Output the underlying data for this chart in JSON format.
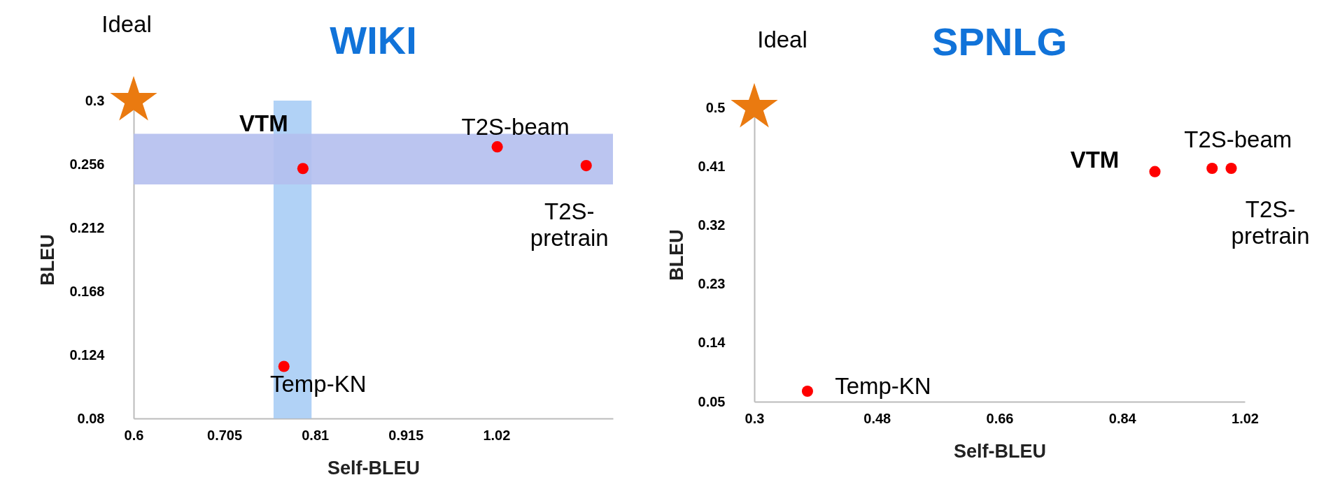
{
  "chart_data": [
    {
      "type": "scatter",
      "title": "WIKI",
      "xlabel": "Self-BLEU",
      "ylabel": "BLEU",
      "xlim": [
        0.6,
        1.155
      ],
      "ylim": [
        0.08,
        0.3
      ],
      "xticks": [
        0.6,
        0.705,
        0.81,
        0.915,
        1.02
      ],
      "yticks": [
        0.08,
        0.124,
        0.168,
        0.212,
        0.256,
        0.3
      ],
      "bands": [
        {
          "axis": "x",
          "from": 0.762,
          "to": 0.806,
          "color": "#a9cdf5"
        },
        {
          "axis": "y",
          "from": 0.242,
          "to": 0.277,
          "color": "#b4bfee"
        }
      ],
      "series": [
        {
          "color": "#ff0000",
          "marker": "circle",
          "x": [
            0.796,
            1.021,
            1.124,
            0.774
          ],
          "values": [
            0.253,
            0.268,
            0.255,
            0.116
          ],
          "value_labels": [
            "VTM",
            "T2S-beam",
            "T2S-\npretrain",
            "Temp-KN"
          ]
        },
        {
          "color": "#ea7a10",
          "marker": "star",
          "x": [
            0.6
          ],
          "values": [
            0.3
          ],
          "value_labels": [
            "Ideal"
          ]
        }
      ]
    },
    {
      "type": "scatter",
      "title": "SPNLG",
      "xlabel": "Self-BLEU",
      "ylabel": "BLEU",
      "xlim": [
        0.3,
        1.02
      ],
      "ylim": [
        0.05,
        0.5
      ],
      "xticks": [
        0.3,
        0.48,
        0.66,
        0.84,
        1.02
      ],
      "yticks": [
        0.05,
        0.14,
        0.23,
        0.32,
        0.41,
        0.5
      ],
      "series": [
        {
          "color": "#ff0000",
          "marker": "circle",
          "x": [
            0.888,
            0.972,
            1.0,
            0.378
          ],
          "values": [
            0.402,
            0.407,
            0.407,
            0.066
          ],
          "value_labels": [
            "VTM",
            "T2S-beam",
            "T2S-\npretrain",
            "Temp-KN"
          ]
        },
        {
          "color": "#ea7a10",
          "marker": "star",
          "x": [
            0.3
          ],
          "values": [
            0.5
          ],
          "value_labels": [
            "Ideal"
          ]
        }
      ]
    }
  ]
}
